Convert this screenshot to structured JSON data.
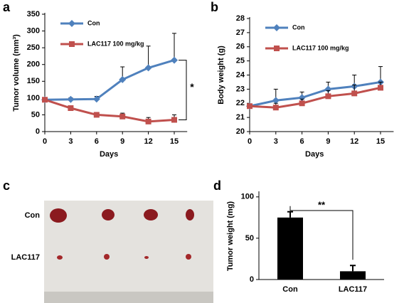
{
  "panel_labels": [
    "a",
    "b",
    "c",
    "d"
  ],
  "photo": {
    "row_labels": [
      "Con",
      "LAC117"
    ]
  },
  "chart_data": [
    {
      "type": "line",
      "ylabel": "Tumor volume (mm³)",
      "xlabel": "Days",
      "annotation": "*",
      "x": [
        0,
        3,
        6,
        9,
        12,
        15
      ],
      "xlim": [
        0,
        16.5
      ],
      "xticks": [
        0,
        3,
        6,
        9,
        12,
        15
      ],
      "ylim": [
        0,
        350
      ],
      "yticks": [
        0,
        50,
        100,
        150,
        200,
        250,
        300,
        350
      ],
      "legend": "upper left",
      "series": [
        {
          "name": "Con",
          "color": "#4f81bd",
          "values": [
            95,
            96,
            97,
            155,
            190,
            213
          ],
          "errors": [
            0,
            5,
            8,
            38,
            65,
            80
          ]
        },
        {
          "name": "LAC117 100 mg/kg",
          "color": "#c0504d",
          "values": [
            95,
            70,
            50,
            45,
            30,
            35
          ],
          "errors": [
            0,
            5,
            5,
            10,
            12,
            15
          ]
        }
      ]
    },
    {
      "type": "line",
      "ylabel": "Body weight (g)",
      "xlabel": "Days",
      "x": [
        0,
        3,
        6,
        9,
        12,
        15
      ],
      "xlim": [
        0,
        16.5
      ],
      "xticks": [
        0,
        3,
        6,
        9,
        12,
        15
      ],
      "ylim": [
        20,
        28
      ],
      "yticks": [
        20,
        21,
        22,
        23,
        24,
        25,
        26,
        27,
        28
      ],
      "legend": "upper left",
      "series": [
        {
          "name": "Con",
          "color": "#4f81bd",
          "values": [
            21.8,
            22.2,
            22.4,
            23.0,
            23.2,
            23.5
          ],
          "errors": [
            0,
            0.8,
            0.4,
            0.5,
            0.8,
            1.1
          ]
        },
        {
          "name": "LAC117 100 mg/kg",
          "color": "#c0504d",
          "values": [
            21.8,
            21.7,
            22.0,
            22.5,
            22.7,
            23.1
          ],
          "errors": [
            0,
            0.3,
            0.3,
            0.4,
            0.6,
            0.4
          ]
        }
      ]
    },
    {
      "type": "bar",
      "ylabel": "Tumor weight (mg)",
      "annotation": "**",
      "categories": [
        "Con",
        "LAC117"
      ],
      "values": [
        75,
        10
      ],
      "errors": [
        7,
        7
      ],
      "color": "#000000",
      "ylim": [
        0,
        105
      ],
      "yticks": [
        0,
        50,
        100
      ]
    }
  ]
}
